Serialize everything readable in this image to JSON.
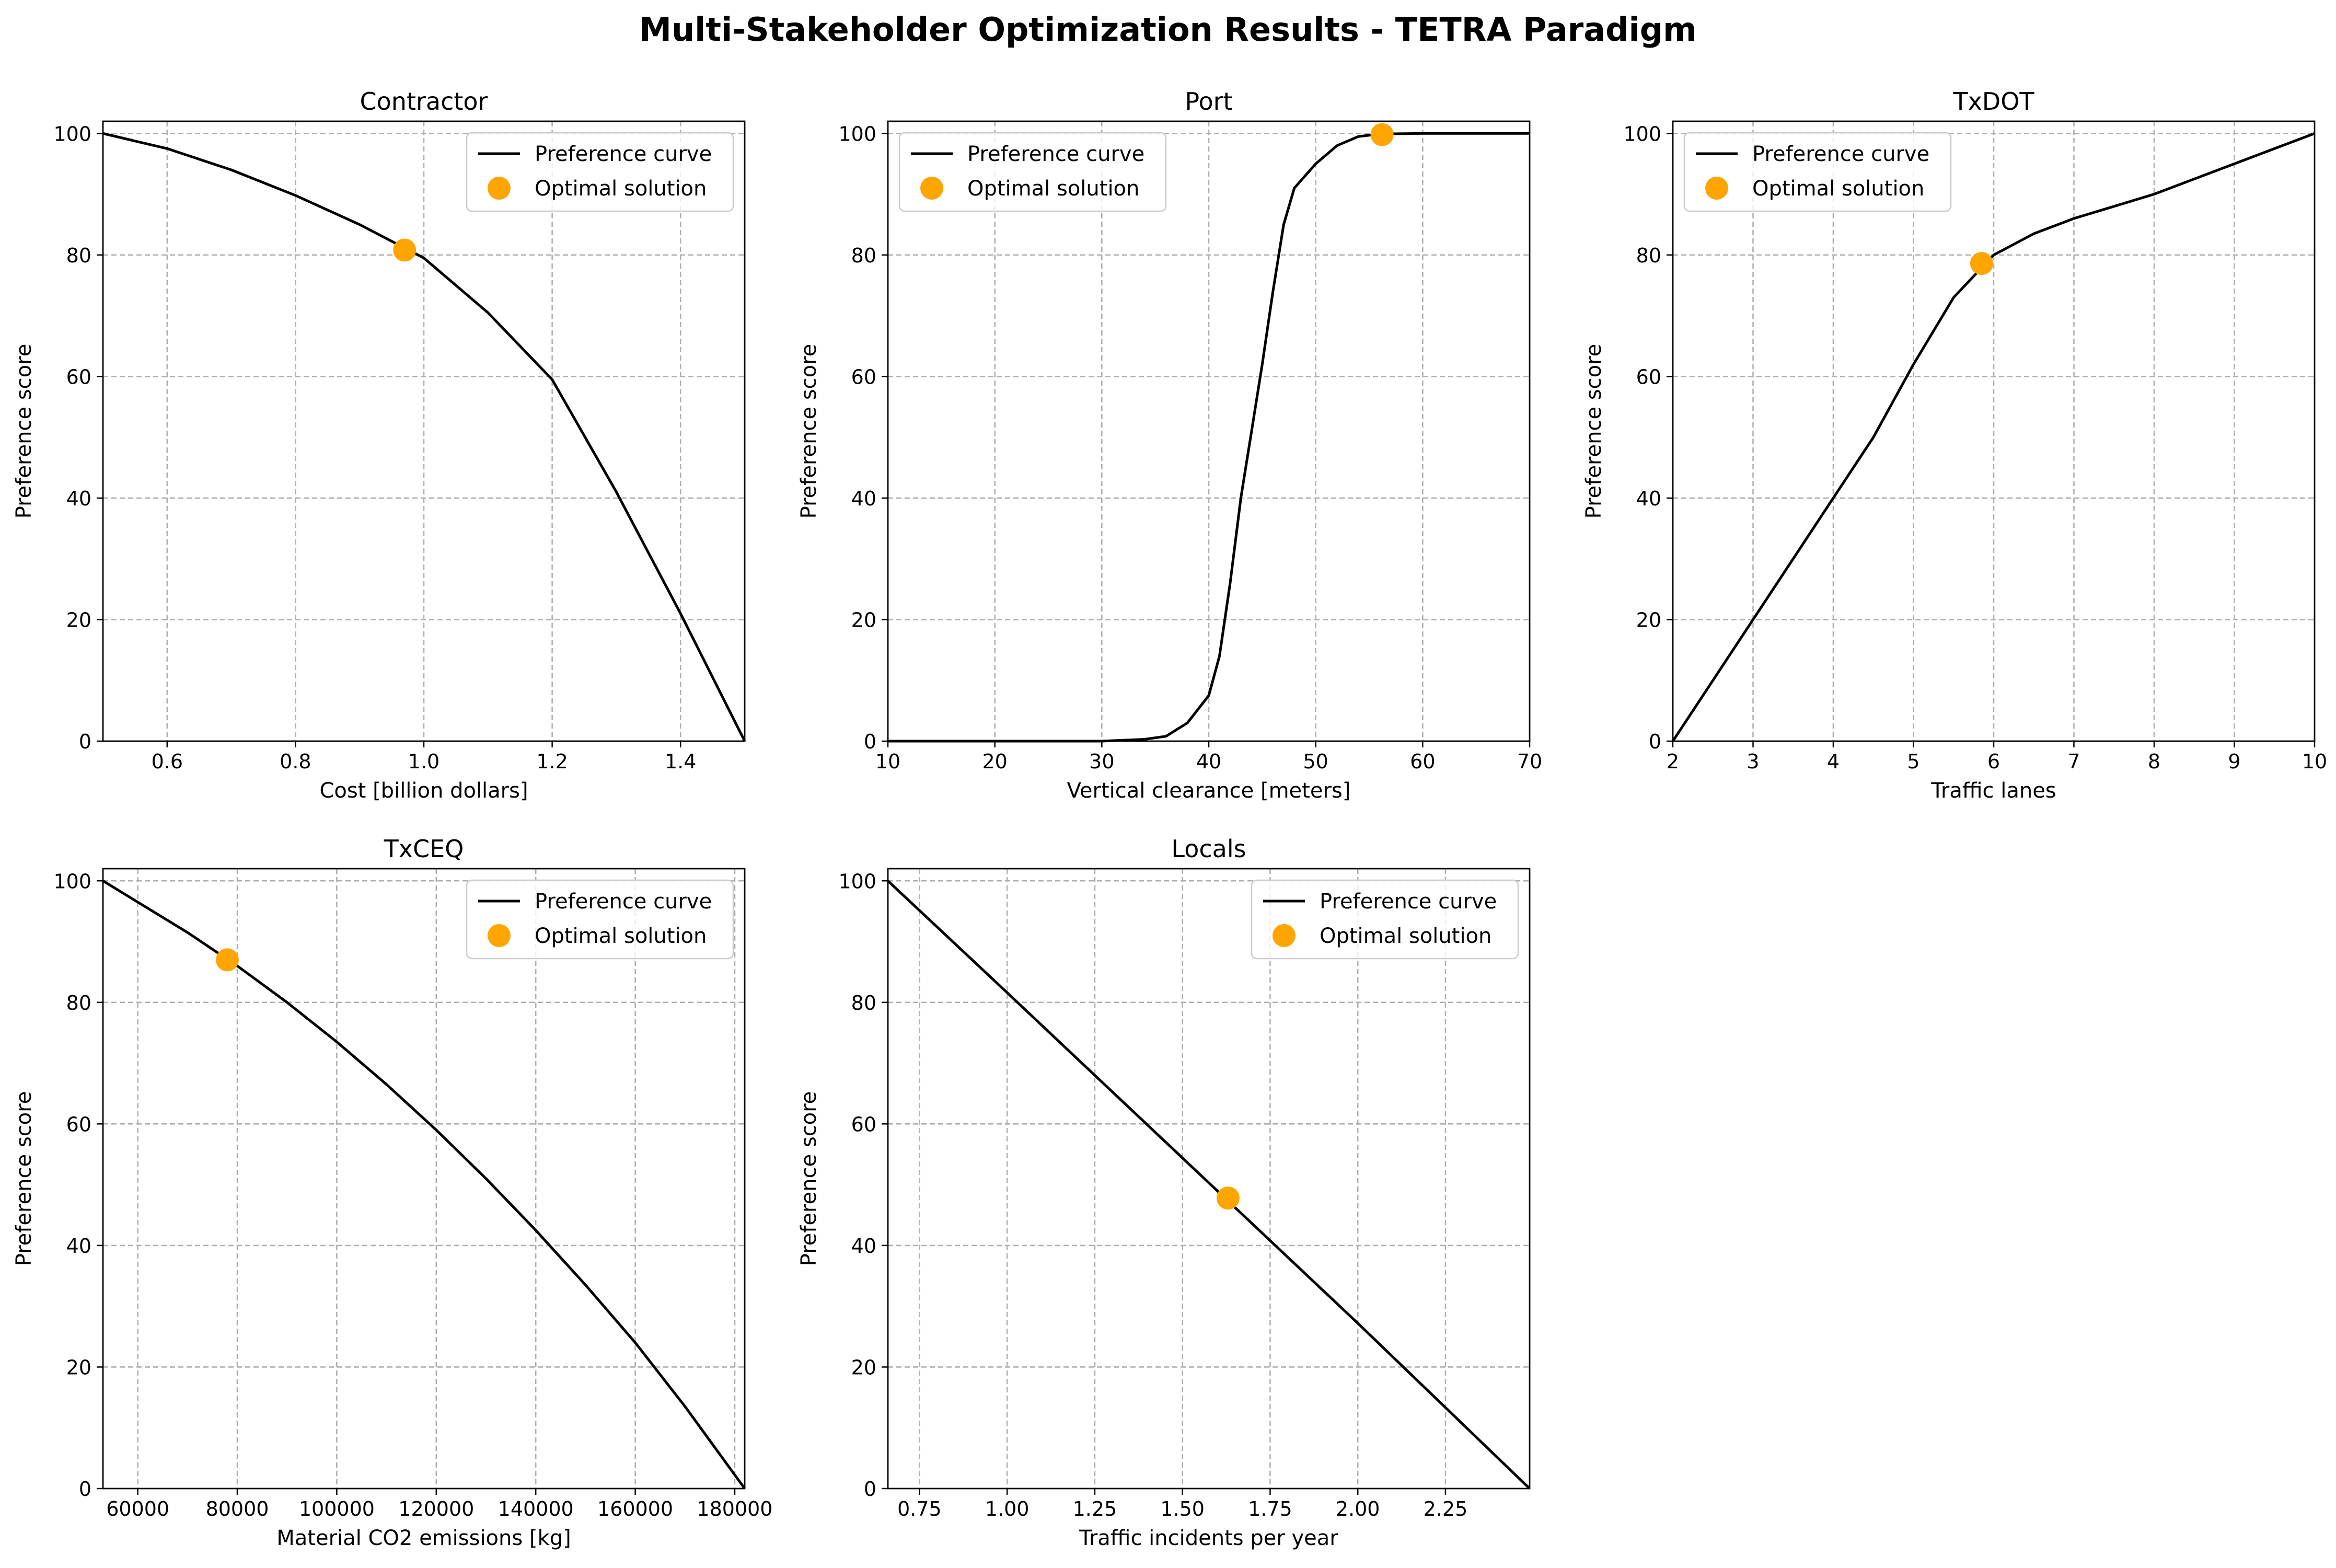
{
  "figure": {
    "title": "Multi-Stakeholder Optimization Results - TETRA Paradigm",
    "legend": {
      "curve_label": "Preference curve",
      "point_label": "Optimal solution"
    }
  },
  "colors": {
    "curve": "#000000",
    "point": "#ffa500",
    "grid": "#b0b0b0"
  },
  "chart_data": [
    {
      "type": "line",
      "title": "Contractor",
      "xlabel": "Cost [billion dollars]",
      "ylabel": "Preference score",
      "xlim": [
        0.5,
        1.5
      ],
      "ylim": [
        0,
        102
      ],
      "xticks": [
        0.6,
        0.8,
        1.0,
        1.2,
        1.4
      ],
      "xtick_labels": [
        "0.6",
        "0.8",
        "1.0",
        "1.2",
        "1.4"
      ],
      "yticks": [
        0,
        20,
        40,
        60,
        80,
        100
      ],
      "legend_position": "top-right",
      "grid": true,
      "series": [
        {
          "name": "Preference curve",
          "x": [
            0.5,
            0.6,
            0.7,
            0.8,
            0.9,
            1.0,
            1.1,
            1.2,
            1.3,
            1.4,
            1.5
          ],
          "y": [
            100,
            97.5,
            94,
            89.8,
            85,
            79.5,
            70.5,
            59.5,
            41,
            21,
            0
          ]
        },
        {
          "name": "Optimal solution",
          "x": [
            0.97
          ],
          "y": [
            80.8
          ]
        }
      ]
    },
    {
      "type": "line",
      "title": "Port",
      "xlabel": "Vertical clearance [meters]",
      "ylabel": "Preference score",
      "xlim": [
        10,
        70
      ],
      "ylim": [
        0,
        102
      ],
      "xticks": [
        10,
        20,
        30,
        40,
        50,
        60,
        70
      ],
      "xtick_labels": [
        "10",
        "20",
        "30",
        "40",
        "50",
        "60",
        "70"
      ],
      "yticks": [
        0,
        20,
        40,
        60,
        80,
        100
      ],
      "legend_position": "top-left",
      "grid": true,
      "series": [
        {
          "name": "Preference curve",
          "x": [
            10,
            30,
            34,
            36,
            38,
            40,
            41,
            42,
            43,
            44,
            45,
            46,
            47,
            48,
            49,
            50,
            52,
            54,
            56,
            60,
            70
          ],
          "y": [
            0,
            0,
            0.3,
            0.8,
            3,
            7.5,
            14,
            26,
            40,
            51,
            62,
            74,
            85,
            91,
            93,
            95,
            98,
            99.5,
            99.9,
            100,
            100
          ]
        },
        {
          "name": "Optimal solution",
          "x": [
            56.2
          ],
          "y": [
            99.8
          ]
        }
      ]
    },
    {
      "type": "line",
      "title": "TxDOT",
      "xlabel": "Traffic lanes",
      "ylabel": "Preference score",
      "xlim": [
        2,
        10
      ],
      "ylim": [
        0,
        102
      ],
      "xticks": [
        2,
        3,
        4,
        5,
        6,
        7,
        8,
        9,
        10
      ],
      "xtick_labels": [
        "2",
        "3",
        "4",
        "5",
        "6",
        "7",
        "8",
        "9",
        "10"
      ],
      "yticks": [
        0,
        20,
        40,
        60,
        80,
        100
      ],
      "legend_position": "top-left",
      "grid": true,
      "series": [
        {
          "name": "Preference curve",
          "x": [
            2,
            3,
            4,
            4.5,
            5,
            5.5,
            6,
            6.5,
            7,
            7.5,
            8,
            9,
            10
          ],
          "y": [
            0,
            20,
            40,
            50,
            62,
            73,
            80,
            83.5,
            86,
            88,
            90,
            95,
            100
          ]
        },
        {
          "name": "Optimal solution",
          "x": [
            5.85
          ],
          "y": [
            78.6
          ]
        }
      ]
    },
    {
      "type": "line",
      "title": "TxCEQ",
      "xlabel": "Material CO2 emissions [kg]",
      "ylabel": "Preference score",
      "xlim": [
        53000,
        182000
      ],
      "ylim": [
        0,
        102
      ],
      "xticks": [
        60000,
        80000,
        100000,
        120000,
        140000,
        160000,
        180000
      ],
      "xtick_labels": [
        "60000",
        "80000",
        "100000",
        "120000",
        "140000",
        "160000",
        "180000"
      ],
      "yticks": [
        0,
        20,
        40,
        60,
        80,
        100
      ],
      "legend_position": "top-right",
      "grid": true,
      "series": [
        {
          "name": "Preference curve",
          "x": [
            53000,
            60000,
            70000,
            80000,
            90000,
            100000,
            110000,
            120000,
            130000,
            140000,
            150000,
            160000,
            170000,
            182000
          ],
          "y": [
            100,
            96.5,
            91.5,
            86,
            80,
            73.5,
            66.5,
            59,
            51,
            42.5,
            33.5,
            24,
            13.5,
            0
          ]
        },
        {
          "name": "Optimal solution",
          "x": [
            78000
          ],
          "y": [
            87
          ]
        }
      ]
    },
    {
      "type": "line",
      "title": "Locals",
      "xlabel": "Traffic incidents per year",
      "ylabel": "Preference score",
      "xlim": [
        0.66,
        2.49
      ],
      "ylim": [
        0,
        102
      ],
      "xticks": [
        0.75,
        1.0,
        1.25,
        1.5,
        1.75,
        2.0,
        2.25
      ],
      "xtick_labels": [
        "0.75",
        "1.00",
        "1.25",
        "1.50",
        "1.75",
        "2.00",
        "2.25"
      ],
      "yticks": [
        0,
        20,
        40,
        60,
        80,
        100
      ],
      "legend_position": "top-right",
      "grid": true,
      "series": [
        {
          "name": "Preference curve",
          "x": [
            0.66,
            1.0,
            1.5,
            2.0,
            2.49
          ],
          "y": [
            100,
            81.6,
            54.4,
            27.2,
            0
          ]
        },
        {
          "name": "Optimal solution",
          "x": [
            1.63
          ],
          "y": [
            47.8
          ]
        }
      ]
    }
  ]
}
